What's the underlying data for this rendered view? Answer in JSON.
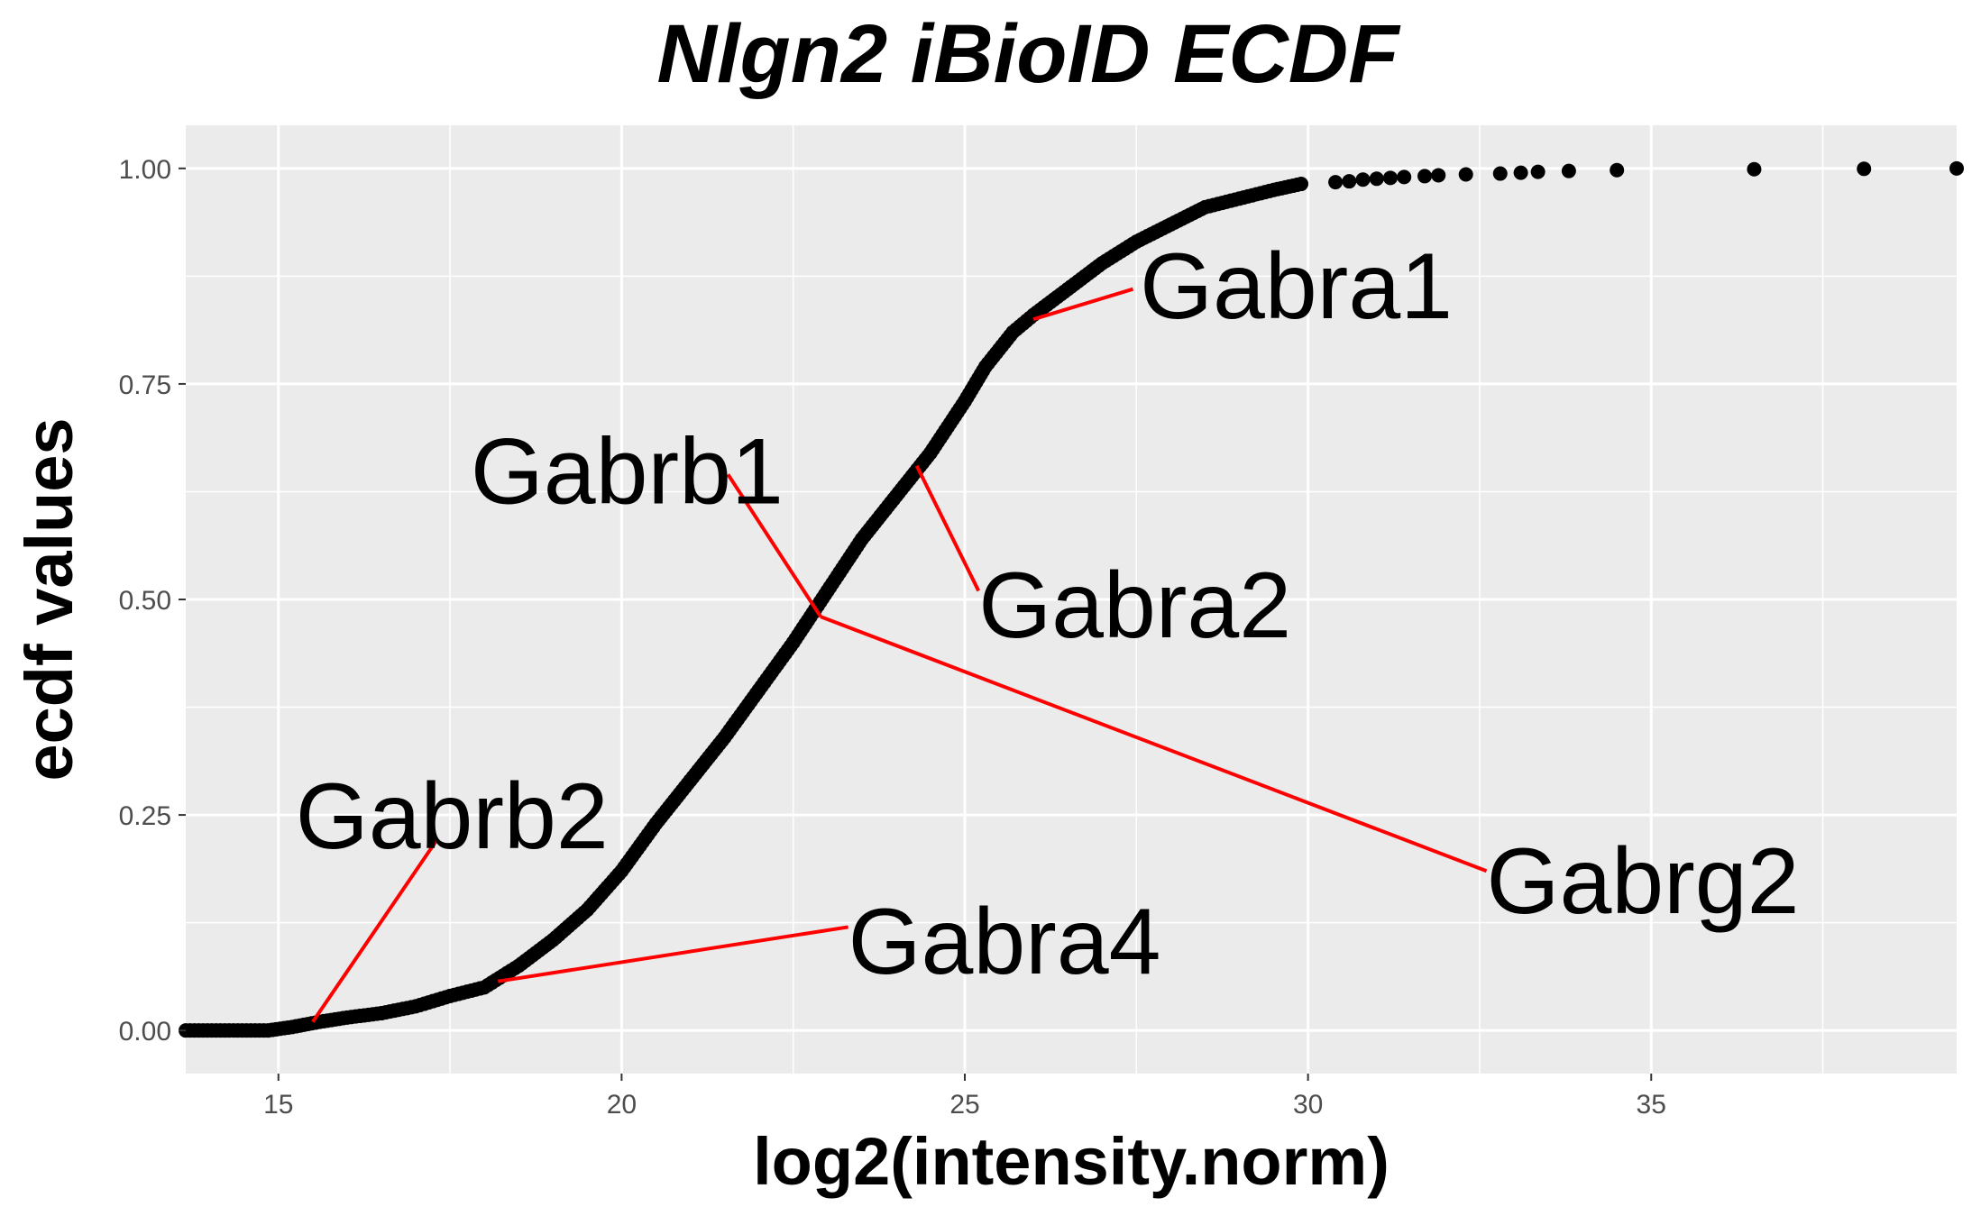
{
  "chart_data": {
    "type": "scatter",
    "title": "Nlgn2 iBioID ECDF",
    "xlabel": "log2(intensity.norm)",
    "ylabel": "ecdf values",
    "xlim": [
      13.65,
      39.45
    ],
    "ylim": [
      -0.05,
      1.05
    ],
    "x_ticks": [
      15,
      20,
      25,
      30,
      35
    ],
    "x_tick_labels": [
      "15",
      "20",
      "25",
      "30",
      "35"
    ],
    "y_ticks": [
      0,
      0.25,
      0.5,
      0.75,
      1
    ],
    "y_tick_labels": [
      "0.00",
      "0.25",
      "0.50",
      "0.75",
      "1.00"
    ],
    "grid": true,
    "background": "#ebebeb",
    "point_color": "#000000",
    "label_line_color": "#ff0000",
    "curve_points": [
      [
        13.65,
        0.0
      ],
      [
        14.85,
        0.0
      ],
      [
        15.2,
        0.004
      ],
      [
        15.6,
        0.01
      ],
      [
        16.0,
        0.015
      ],
      [
        16.5,
        0.02
      ],
      [
        17.0,
        0.028
      ],
      [
        17.5,
        0.04
      ],
      [
        18.0,
        0.05
      ],
      [
        18.5,
        0.075
      ],
      [
        19.0,
        0.105
      ],
      [
        19.5,
        0.14
      ],
      [
        20.0,
        0.185
      ],
      [
        20.5,
        0.24
      ],
      [
        21.0,
        0.29
      ],
      [
        21.5,
        0.34
      ],
      [
        22.0,
        0.395
      ],
      [
        22.5,
        0.45
      ],
      [
        23.0,
        0.51
      ],
      [
        23.5,
        0.57
      ],
      [
        24.0,
        0.62
      ],
      [
        24.5,
        0.67
      ],
      [
        25.0,
        0.73
      ],
      [
        25.3,
        0.77
      ],
      [
        25.7,
        0.81
      ],
      [
        26.0,
        0.83
      ],
      [
        26.5,
        0.86
      ],
      [
        27.0,
        0.89
      ],
      [
        27.5,
        0.915
      ],
      [
        28.0,
        0.935
      ],
      [
        28.5,
        0.955
      ],
      [
        29.0,
        0.965
      ],
      [
        29.5,
        0.975
      ],
      [
        29.9,
        0.982
      ]
    ],
    "tail_points": [
      [
        30.4,
        0.984
      ],
      [
        30.6,
        0.985
      ],
      [
        30.8,
        0.987
      ],
      [
        31.0,
        0.988
      ],
      [
        31.2,
        0.989
      ],
      [
        31.4,
        0.99
      ],
      [
        31.7,
        0.991
      ],
      [
        31.9,
        0.992
      ],
      [
        32.3,
        0.993
      ],
      [
        32.8,
        0.994
      ],
      [
        33.1,
        0.995
      ],
      [
        33.35,
        0.996
      ],
      [
        33.8,
        0.997
      ],
      [
        34.5,
        0.998
      ],
      [
        36.5,
        0.999
      ],
      [
        38.1,
        0.9995
      ],
      [
        39.45,
        1.0
      ]
    ],
    "labels": [
      {
        "text": "Gabra1",
        "point": [
          26.0,
          0.825
        ],
        "label_at": [
          27.55,
          0.865
        ],
        "line_end": [
          27.45,
          0.86
        ]
      },
      {
        "text": "Gabrb1",
        "point": [
          22.9,
          0.48
        ],
        "label_at": [
          17.8,
          0.65
        ],
        "line_end": [
          21.55,
          0.645
        ]
      },
      {
        "text": "Gabra2",
        "point": [
          24.3,
          0.655
        ],
        "label_at": [
          25.2,
          0.495
        ],
        "line_end": [
          25.2,
          0.51
        ]
      },
      {
        "text": "Gabrb2",
        "point": [
          15.5,
          0.01
        ],
        "label_at": [
          15.25,
          0.25
        ],
        "line_end": [
          17.3,
          0.22
        ]
      },
      {
        "text": "Gabra4",
        "point": [
          18.2,
          0.057
        ],
        "label_at": [
          23.3,
          0.105
        ],
        "line_end": [
          23.3,
          0.12
        ]
      },
      {
        "text": "Gabrg2",
        "point": [
          22.9,
          0.48
        ],
        "label_at": [
          32.6,
          0.175
        ],
        "line_end": [
          32.6,
          0.185
        ]
      }
    ]
  }
}
